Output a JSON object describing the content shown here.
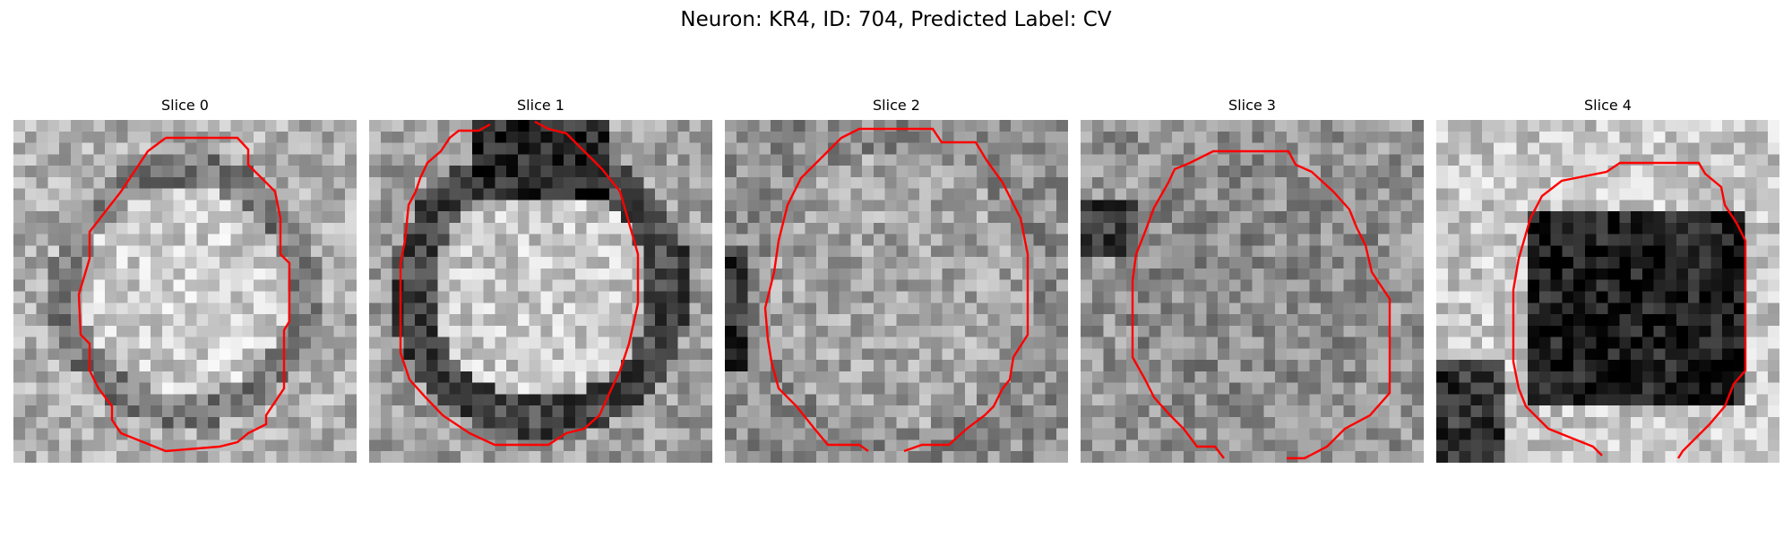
{
  "figure": {
    "title": "Neuron: KR4, ID: 704, Predicted Label: CV"
  },
  "panels": [
    {
      "title": "Slice 0",
      "pattern": "ring-light",
      "contour_color": "#ff0000"
    },
    {
      "title": "Slice 1",
      "pattern": "ring-dark",
      "contour_color": "#ff0000"
    },
    {
      "title": "Slice 2",
      "pattern": "mottled",
      "contour_color": "#ff0000"
    },
    {
      "title": "Slice 3",
      "pattern": "noisy",
      "contour_color": "#ff0000"
    },
    {
      "title": "Slice 4",
      "pattern": "dark-blob",
      "contour_color": "#ff0000"
    }
  ]
}
